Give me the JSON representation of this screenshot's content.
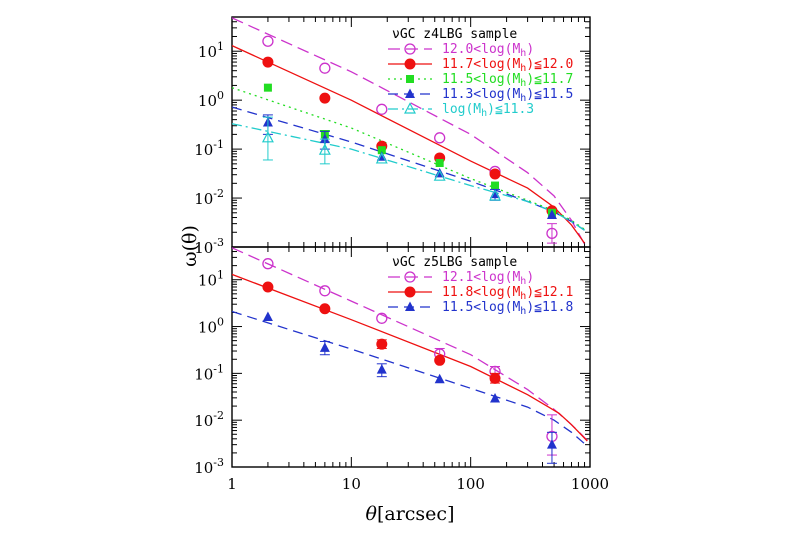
{
  "chart_data": [
    {
      "type": "line",
      "panel": "top",
      "xlim": [
        1,
        1000
      ],
      "ylim": [
        0.001,
        50
      ],
      "xscale": "log",
      "yscale": "log",
      "ylabel": "ω(θ)",
      "xticks": [
        "1",
        "10",
        "100",
        "1000"
      ],
      "yticks": [
        {
          "base": "10",
          "exp": "-3",
          "value": 0.001
        },
        {
          "base": "10",
          "exp": "-2",
          "value": 0.01
        },
        {
          "base": "10",
          "exp": "-1",
          "value": 0.1
        },
        {
          "base": "10",
          "exp": "0",
          "value": 1
        },
        {
          "base": "10",
          "exp": "1",
          "value": 10
        }
      ],
      "legend_title": "νGC z4LBG sample",
      "legend_position": "top-right",
      "series": [
        {
          "label_parts": [
            [
              "12.0<log(M",
              ""
            ],
            [
              "h",
              "sub"
            ],
            [
              ")",
              ""
            ]
          ],
          "color": "#cc33cc",
          "marker": "open-circle",
          "dash": "12 6",
          "points": [
            [
              2.0,
              16.0
            ],
            [
              6.0,
              4.5
            ],
            [
              18.0,
              0.65
            ],
            [
              55.0,
              0.17
            ],
            [
              160.0,
              0.035
            ],
            [
              480.0,
              0.0019
            ]
          ],
          "err": [
            null,
            null,
            null,
            null,
            null,
            [
              0.0012,
              0.003
            ]
          ],
          "model": [
            [
              1,
              48
            ],
            [
              10,
              3.8
            ],
            [
              100,
              0.2
            ],
            [
              300,
              0.033
            ],
            [
              500,
              0.011
            ],
            [
              700,
              0.0035
            ],
            [
              950,
              0.0009
            ]
          ]
        },
        {
          "label_parts": [
            [
              "11.7<log(M",
              ""
            ],
            [
              "h",
              "sub"
            ],
            [
              ")≦12.0",
              ""
            ]
          ],
          "color": "#ee1111",
          "marker": "filled-circle",
          "dash": "",
          "points": [
            [
              2.0,
              6.0
            ],
            [
              6.0,
              1.1
            ],
            [
              18.0,
              0.115
            ],
            [
              55.0,
              0.066
            ],
            [
              160.0,
              0.031
            ],
            [
              480.0,
              0.0055
            ]
          ],
          "err": [
            null,
            null,
            null,
            null,
            null,
            null
          ],
          "model": [
            [
              1,
              13
            ],
            [
              10,
              1.0
            ],
            [
              100,
              0.057
            ],
            [
              300,
              0.016
            ],
            [
              500,
              0.0065
            ],
            [
              700,
              0.0028
            ],
            [
              900,
              0.0012
            ]
          ]
        },
        {
          "label_parts": [
            [
              "11.5<log(M",
              ""
            ],
            [
              "h",
              "sub"
            ],
            [
              ")≦11.7",
              ""
            ]
          ],
          "color": "#22dd22",
          "marker": "filled-square",
          "dash": "2 4",
          "points": [
            [
              2.0,
              1.8
            ],
            [
              6.0,
              0.2
            ],
            [
              18.0,
              0.095
            ],
            [
              55.0,
              0.052
            ],
            [
              160.0,
              0.018
            ],
            [
              480.0,
              0.005
            ]
          ],
          "err": [
            null,
            [
              0.14,
              0.24
            ],
            null,
            null,
            null,
            null
          ],
          "model": [
            [
              1,
              1.8
            ],
            [
              10,
              0.27
            ],
            [
              100,
              0.025
            ],
            [
              300,
              0.009
            ],
            [
              500,
              0.0055
            ],
            [
              700,
              0.0035
            ],
            [
              900,
              0.0023
            ]
          ]
        },
        {
          "label_parts": [
            [
              "11.3<log(M",
              ""
            ],
            [
              "h",
              "sub"
            ],
            [
              ")≦11.5",
              ""
            ]
          ],
          "color": "#2233cc",
          "marker": "filled-triangle",
          "dash": "10 6",
          "points": [
            [
              2.0,
              0.35
            ],
            [
              6.0,
              0.16
            ],
            [
              18.0,
              0.07
            ],
            [
              55.0,
              0.032
            ],
            [
              160.0,
              0.012
            ],
            [
              480.0,
              0.0045
            ]
          ],
          "err": [
            [
              0.2,
              0.5
            ],
            [
              0.1,
              0.23
            ],
            null,
            null,
            [
              0.009,
              0.015
            ],
            null
          ],
          "model": [
            [
              1,
              0.72
            ],
            [
              10,
              0.14
            ],
            [
              100,
              0.022
            ],
            [
              300,
              0.0085
            ],
            [
              500,
              0.0052
            ],
            [
              700,
              0.0033
            ],
            [
              900,
              0.0022
            ]
          ]
        },
        {
          "label_parts": [
            [
              "log(M",
              ""
            ],
            [
              "h",
              "sub"
            ],
            [
              ")≦11.3",
              ""
            ]
          ],
          "color": "#22cccc",
          "marker": "open-triangle",
          "dash": "10 4 2 4",
          "points": [
            [
              2.0,
              0.17
            ],
            [
              6.0,
              0.095
            ],
            [
              18.0,
              0.063
            ],
            [
              55.0,
              0.028
            ],
            [
              160.0,
              0.011
            ]
          ],
          "err": [
            [
              0.06,
              0.45
            ],
            [
              0.05,
              0.16
            ],
            null,
            null,
            null
          ],
          "model": [
            [
              1,
              0.33
            ],
            [
              10,
              0.1
            ],
            [
              100,
              0.018
            ],
            [
              300,
              0.0085
            ],
            [
              500,
              0.0052
            ],
            [
              700,
              0.0033
            ],
            [
              900,
              0.0022
            ]
          ]
        }
      ]
    },
    {
      "type": "line",
      "panel": "bottom",
      "xlim": [
        1,
        1000
      ],
      "ylim": [
        0.001,
        50
      ],
      "xscale": "log",
      "yscale": "log",
      "xlabel_symbol": "θ",
      "xlabel_unit": "[arcsec]",
      "xticks": [
        "1",
        "10",
        "100",
        "1000"
      ],
      "yticks": [
        {
          "base": "10",
          "exp": "-3",
          "value": 0.001
        },
        {
          "base": "10",
          "exp": "-2",
          "value": 0.01
        },
        {
          "base": "10",
          "exp": "-1",
          "value": 0.1
        },
        {
          "base": "10",
          "exp": "0",
          "value": 1
        },
        {
          "base": "10",
          "exp": "1",
          "value": 10
        }
      ],
      "legend_title": "νGC z5LBG sample",
      "legend_position": "top-right",
      "series": [
        {
          "label_parts": [
            [
              "12.1<log(M",
              ""
            ],
            [
              "h",
              "sub"
            ],
            [
              ")",
              ""
            ]
          ],
          "color": "#cc33cc",
          "marker": "open-circle",
          "dash": "12 6",
          "points": [
            [
              2.0,
              22.0
            ],
            [
              6.0,
              5.8
            ],
            [
              18.0,
              1.5
            ],
            [
              55.0,
              0.26
            ],
            [
              160.0,
              0.11
            ],
            [
              480.0,
              0.0045
            ]
          ],
          "err": [
            null,
            null,
            null,
            [
              0.2,
              0.34
            ],
            [
              0.085,
              0.14
            ],
            [
              0.0018,
              0.013
            ]
          ],
          "model": [
            [
              1,
              48
            ],
            [
              10,
              3.5
            ],
            [
              100,
              0.25
            ],
            [
              300,
              0.045
            ],
            [
              500,
              0.017
            ],
            [
              650,
              0.0095
            ],
            [
              800,
              0.0058
            ],
            [
              950,
              0.0037
            ]
          ]
        },
        {
          "label_parts": [
            [
              "11.8<log(M",
              ""
            ],
            [
              "h",
              "sub"
            ],
            [
              ")≦12.1",
              ""
            ]
          ],
          "color": "#ee1111",
          "marker": "filled-circle",
          "dash": "",
          "points": [
            [
              2.0,
              7.0
            ],
            [
              6.0,
              2.4
            ],
            [
              18.0,
              0.42
            ],
            [
              55.0,
              0.19
            ],
            [
              160.0,
              0.078
            ]
          ],
          "err": [
            null,
            null,
            [
              0.34,
              0.52
            ],
            null,
            [
              0.062,
              0.1
            ]
          ],
          "model": [
            [
              1,
              13
            ],
            [
              10,
              1.4
            ],
            [
              100,
              0.14
            ],
            [
              300,
              0.035
            ],
            [
              450,
              0.019
            ],
            [
              550,
              0.014
            ],
            [
              700,
              0.008
            ],
            [
              950,
              0.0036
            ]
          ]
        },
        {
          "label_parts": [
            [
              "11.5<log(M",
              ""
            ],
            [
              "h",
              "sub"
            ],
            [
              ")≦11.8",
              ""
            ]
          ],
          "color": "#2233cc",
          "marker": "filled-triangle",
          "dash": "10 6",
          "points": [
            [
              2.0,
              1.6
            ],
            [
              6.0,
              0.35
            ],
            [
              18.0,
              0.12
            ],
            [
              55.0,
              0.075
            ],
            [
              160.0,
              0.029
            ],
            [
              480.0,
              0.003
            ]
          ],
          "err": [
            null,
            [
              0.25,
              0.48
            ],
            [
              0.085,
              0.16
            ],
            null,
            null,
            [
              0.0012,
              0.0055
            ]
          ],
          "model": [
            [
              1,
              2.1
            ],
            [
              10,
              0.33
            ],
            [
              100,
              0.048
            ],
            [
              300,
              0.019
            ],
            [
              500,
              0.01
            ],
            [
              700,
              0.0055
            ],
            [
              950,
              0.0028
            ]
          ]
        }
      ]
    }
  ]
}
